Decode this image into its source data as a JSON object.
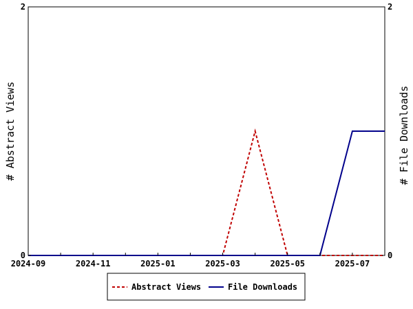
{
  "chart_data": {
    "type": "line",
    "x": [
      "2024-09",
      "2024-10",
      "2024-11",
      "2024-12",
      "2025-01",
      "2025-02",
      "2025-03",
      "2025-04",
      "2025-05",
      "2025-06",
      "2025-07",
      "2025-08"
    ],
    "x_tick_labels": [
      "2024-09",
      "2024-11",
      "2025-01",
      "2025-03",
      "2025-05",
      "2025-07"
    ],
    "series": [
      {
        "name": "Abstract Views",
        "axis": "left",
        "color": "#c00000",
        "dash": "dashed",
        "values": [
          0,
          0,
          0,
          0,
          0,
          0,
          0,
          1,
          0,
          0,
          0,
          0
        ]
      },
      {
        "name": "File Downloads",
        "axis": "right",
        "color": "#00008b",
        "dash": "solid",
        "values": [
          0,
          0,
          0,
          0,
          0,
          0,
          0,
          0,
          0,
          0,
          1,
          1
        ]
      }
    ],
    "ylabel_left": "# Abstract Views",
    "ylabel_right": "# File Downloads",
    "ylim_left": [
      0,
      2
    ],
    "ylim_right": [
      0,
      2
    ],
    "y_tick_labels_left": [
      "0",
      "2"
    ],
    "y_tick_labels_right": [
      "0",
      "2"
    ],
    "grid": false,
    "legend_position": "bottom-center"
  }
}
